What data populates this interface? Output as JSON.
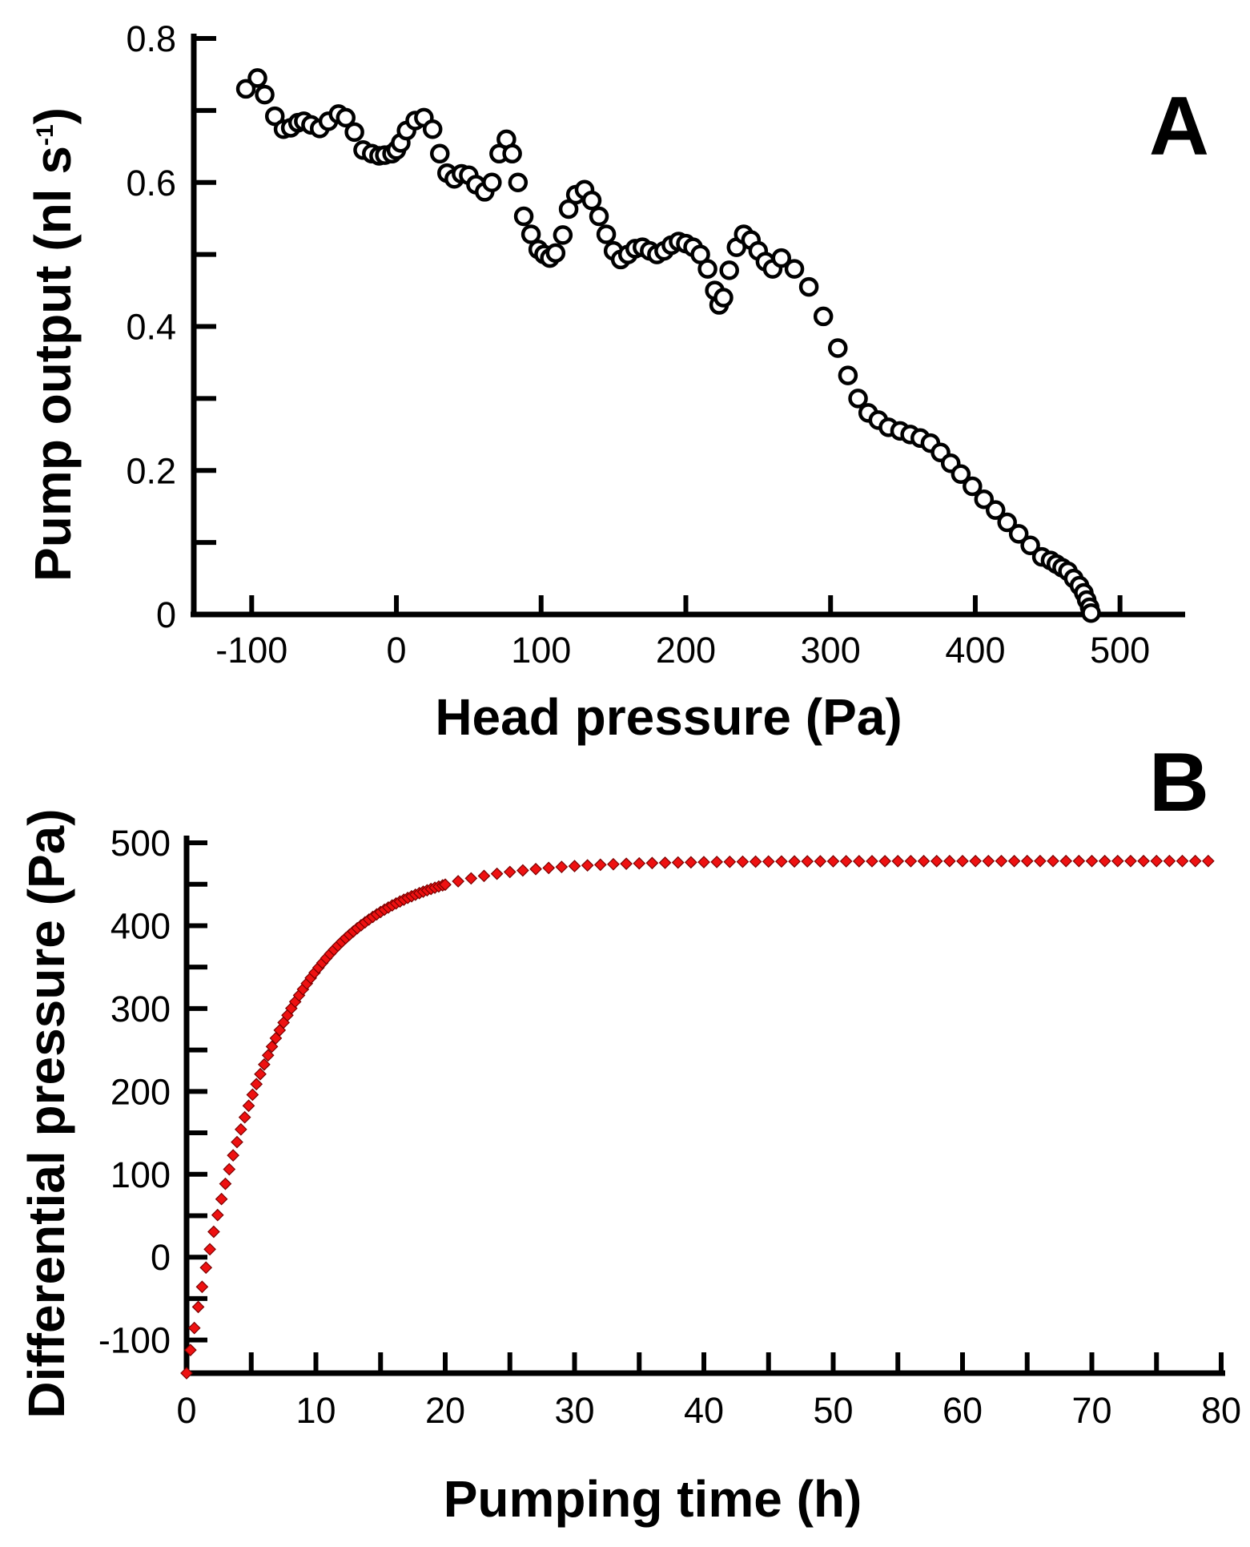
{
  "chart_data": [
    {
      "panel": "A",
      "type": "scatter",
      "panel_label": "A",
      "xlabel": "Head pressure (Pa)",
      "ylabel_main": "Pump output (nl s",
      "ylabel_sup": "-1",
      "ylabel_close": ")",
      "xlim": [
        -140,
        545
      ],
      "ylim": [
        0,
        0.8
      ],
      "xticks": [
        -100,
        0,
        100,
        200,
        300,
        400,
        500
      ],
      "xtick_labels": [
        "-100",
        "0",
        "100",
        "200",
        "300",
        "400",
        "500"
      ],
      "yticks": [
        0,
        0.2,
        0.4,
        0.6,
        0.8
      ],
      "ytick_labels": [
        "0",
        "0.2",
        "0.4",
        "0.6",
        "0.8"
      ],
      "marker": "open-circle",
      "marker_color": "#000000",
      "x": [
        -104,
        -96,
        -91,
        -84,
        -78,
        -73,
        -68,
        -64,
        -59,
        -53,
        -47,
        -40,
        -35,
        -29,
        -23,
        -17,
        -12,
        -8,
        -3,
        0,
        3,
        7,
        13,
        19,
        25,
        30,
        35,
        40,
        45,
        50,
        55,
        61,
        66,
        71,
        76,
        80,
        84,
        88,
        93,
        98,
        102,
        106,
        110,
        115,
        119,
        124,
        130,
        135,
        140,
        145,
        150,
        155,
        160,
        165,
        170,
        175,
        180,
        185,
        190,
        195,
        200,
        205,
        210,
        215,
        220,
        223,
        226,
        230,
        235,
        240,
        245,
        250,
        255,
        260,
        266,
        275,
        285,
        295,
        305,
        312,
        319,
        326,
        333,
        340,
        348,
        355,
        362,
        369,
        376,
        383,
        390,
        398,
        406,
        414,
        422,
        430,
        438,
        446,
        452,
        456,
        460,
        464,
        468,
        472,
        475,
        477,
        479,
        480
      ],
      "y": [
        0.73,
        0.745,
        0.722,
        0.692,
        0.674,
        0.676,
        0.683,
        0.685,
        0.68,
        0.675,
        0.685,
        0.695,
        0.69,
        0.67,
        0.645,
        0.64,
        0.637,
        0.638,
        0.64,
        0.645,
        0.655,
        0.672,
        0.686,
        0.69,
        0.674,
        0.64,
        0.613,
        0.605,
        0.612,
        0.61,
        0.597,
        0.587,
        0.6,
        0.64,
        0.66,
        0.64,
        0.6,
        0.553,
        0.528,
        0.507,
        0.5,
        0.495,
        0.502,
        0.527,
        0.563,
        0.583,
        0.59,
        0.575,
        0.553,
        0.528,
        0.505,
        0.493,
        0.5,
        0.508,
        0.51,
        0.505,
        0.5,
        0.505,
        0.513,
        0.518,
        0.515,
        0.51,
        0.5,
        0.48,
        0.45,
        0.43,
        0.44,
        0.478,
        0.51,
        0.528,
        0.52,
        0.505,
        0.49,
        0.48,
        0.495,
        0.48,
        0.455,
        0.414,
        0.37,
        0.332,
        0.3,
        0.28,
        0.27,
        0.26,
        0.255,
        0.25,
        0.245,
        0.238,
        0.225,
        0.21,
        0.195,
        0.178,
        0.16,
        0.145,
        0.128,
        0.112,
        0.096,
        0.08,
        0.075,
        0.07,
        0.065,
        0.06,
        0.05,
        0.04,
        0.03,
        0.02,
        0.01,
        0.002
      ]
    },
    {
      "panel": "B",
      "type": "line",
      "panel_label": "B",
      "xlabel": "Pumping time (h)",
      "ylabel": "Differential pressure (Pa)",
      "xlim": [
        0,
        80
      ],
      "ylim": [
        -140,
        510
      ],
      "xticks": [
        0,
        10,
        20,
        30,
        40,
        50,
        60,
        70,
        80
      ],
      "xtick_labels": [
        "0",
        "10",
        "20",
        "30",
        "40",
        "50",
        "60",
        "70",
        "80"
      ],
      "yticks": [
        -100,
        0,
        100,
        200,
        300,
        400,
        500
      ],
      "ytick_labels": [
        "-100",
        "0",
        "100",
        "200",
        "300",
        "400",
        "500"
      ],
      "marker": "diamond",
      "marker_color": "#ee1111",
      "series": [
        {
          "name": "Differential pressure",
          "model": "plateau approach",
          "x_start": 0,
          "x_end": 79,
          "y_start": -140,
          "y_plateau": 478,
          "time_constant_h": 6.5,
          "points": 200
        }
      ]
    }
  ]
}
